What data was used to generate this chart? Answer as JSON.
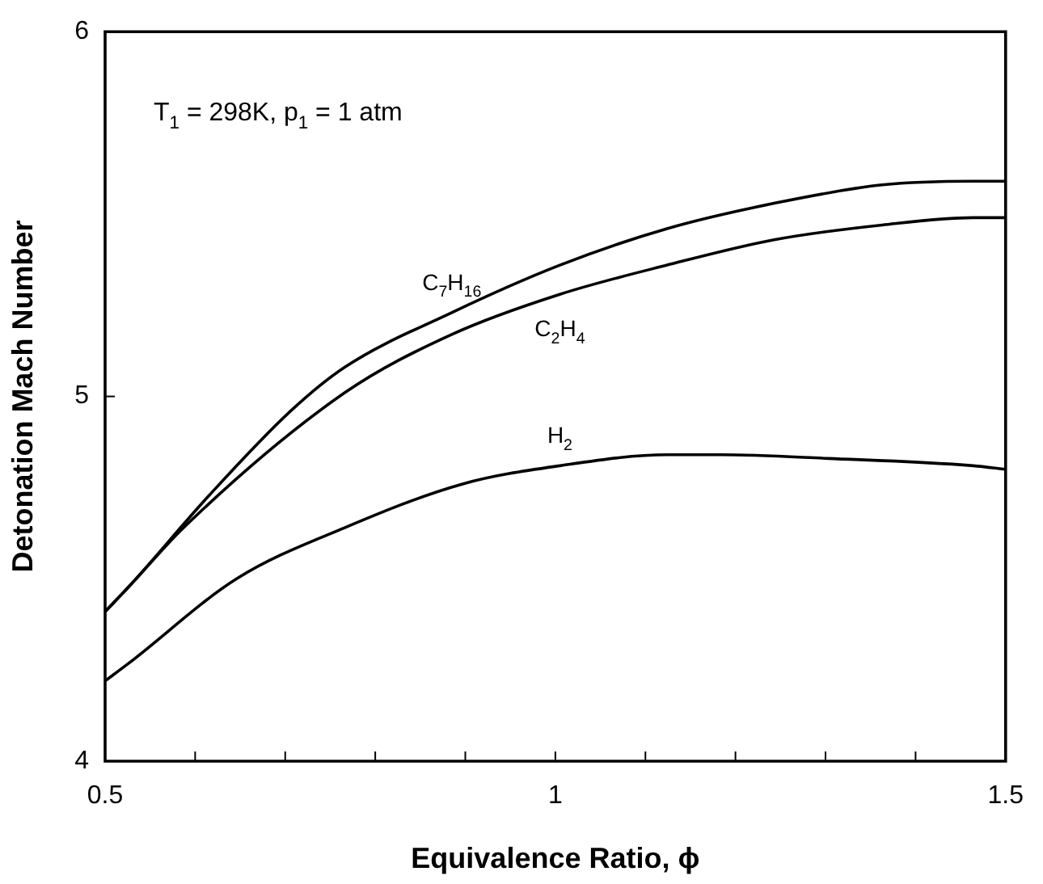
{
  "chart_data": {
    "type": "line",
    "xlabel": "Equivalence Ratio, ϕ",
    "ylabel": "Detonation Mach Number",
    "xlim": [
      0.5,
      1.5
    ],
    "ylim": [
      4,
      6
    ],
    "xticks": [
      0.5,
      {
        "value": 0.6,
        "label": null
      },
      {
        "value": 0.7,
        "label": null
      },
      {
        "value": 0.8,
        "label": null
      },
      {
        "value": 0.9,
        "label": null
      },
      1,
      {
        "value": 1.1,
        "label": null
      },
      {
        "value": 1.2,
        "label": null
      },
      {
        "value": 1.3,
        "label": null
      },
      {
        "value": 1.4,
        "label": null
      },
      1.5
    ],
    "yticks": [
      4,
      5,
      6
    ],
    "grid": false,
    "legend": false,
    "marker": "none",
    "line_style": "solid",
    "series": [
      {
        "name": "C$_{7}$H$_{16}$",
        "color": "#000000",
        "x": [
          0.5,
          0.527,
          0.616,
          0.706,
          0.766,
          0.885,
          1.005,
          1.124,
          1.244,
          1.363,
          1.464,
          1.5
        ],
        "values": [
          4.41,
          4.48,
          4.73,
          4.96,
          5.08,
          5.23,
          5.36,
          5.46,
          5.53,
          5.58,
          5.59,
          5.59
        ]
      },
      {
        "name": "C$_{2}$H$_{4}$",
        "color": "#000000",
        "x": [
          0.5,
          0.527,
          0.587,
          0.766,
          0.885,
          1.005,
          1.124,
          1.244,
          1.363,
          1.464,
          1.5
        ],
        "values": [
          4.41,
          4.48,
          4.64,
          5.01,
          5.17,
          5.28,
          5.36,
          5.43,
          5.47,
          5.49,
          5.49
        ]
      },
      {
        "name": "H$_{2}$",
        "color": "#000000",
        "x": [
          0.5,
          0.527,
          0.646,
          0.766,
          0.897,
          1.005,
          1.124,
          1.184,
          1.303,
          1.464,
          1.5
        ],
        "values": [
          4.22,
          4.27,
          4.5,
          4.64,
          4.76,
          4.81,
          4.84,
          4.84,
          4.83,
          4.81,
          4.8
        ]
      }
    ],
    "annotations": [
      "T$_{1}$ = 298K, p$_{1}$ = 1 atm"
    ]
  }
}
